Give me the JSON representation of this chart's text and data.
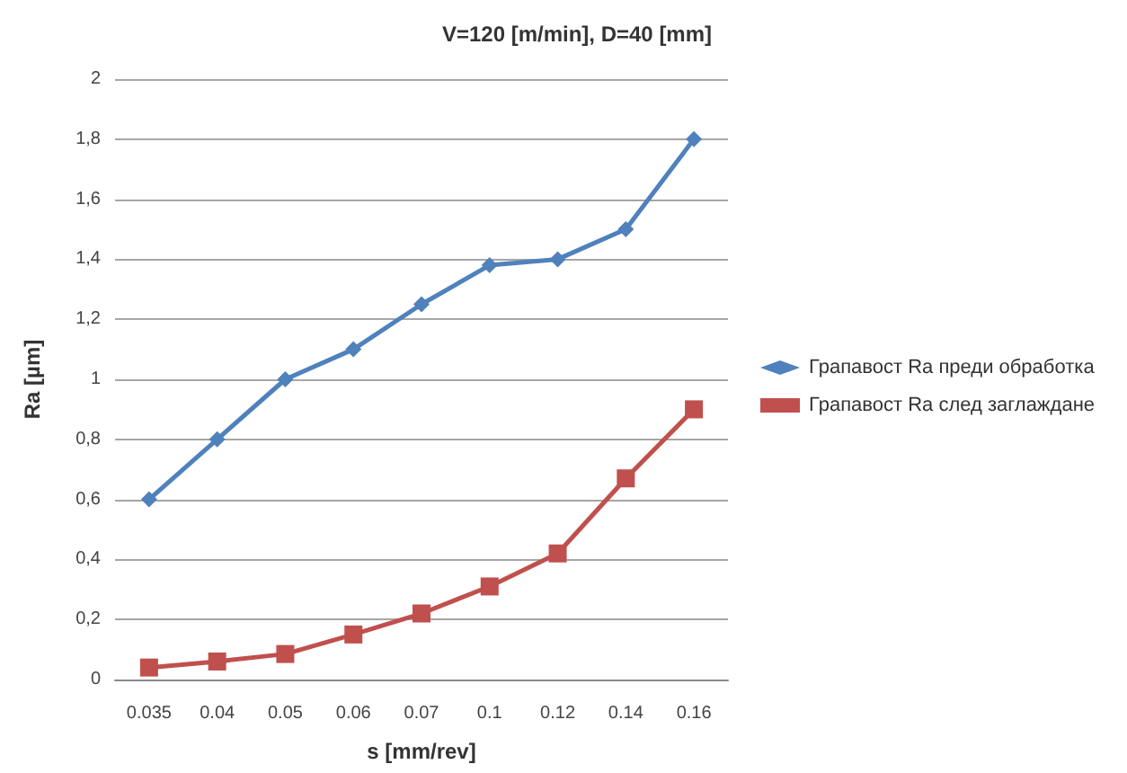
{
  "chart_data": {
    "type": "line",
    "title": "V=120 [m/min], D=40 [mm]",
    "xlabel": "s [mm/rev]",
    "ylabel": "Ra [µm]",
    "categories": [
      "0.035",
      "0.04",
      "0.05",
      "0.06",
      "0.07",
      "0.1",
      "0.12",
      "0.14",
      "0.16"
    ],
    "series": [
      {
        "name": "Грапавост Ra преди обработка",
        "color": "#4f81bd",
        "marker": "diamond",
        "values": [
          0.6,
          0.8,
          1.0,
          1.1,
          1.25,
          1.38,
          1.4,
          1.5,
          1.8
        ]
      },
      {
        "name": "Грапавост Ra след заглаждане",
        "color": "#c0504d",
        "marker": "square",
        "values": [
          0.04,
          0.06,
          0.085,
          0.15,
          0.22,
          0.31,
          0.42,
          0.67,
          0.9
        ]
      }
    ],
    "ylim": [
      0,
      2
    ],
    "yticks": [
      0,
      {
        "value": 0.2,
        "label": "0,2"
      },
      {
        "value": 0.4,
        "label": "0,4"
      },
      {
        "value": 0.6,
        "label": "0,6"
      },
      {
        "value": 0.8,
        "label": "0,8"
      },
      1,
      {
        "value": 1.2,
        "label": "1,2"
      },
      {
        "value": 1.4,
        "label": "1,4"
      },
      {
        "value": 1.6,
        "label": "1,6"
      },
      {
        "value": 1.8,
        "label": "1,8"
      },
      2
    ],
    "grid": "y",
    "legend": "right",
    "line_style": "solid"
  }
}
